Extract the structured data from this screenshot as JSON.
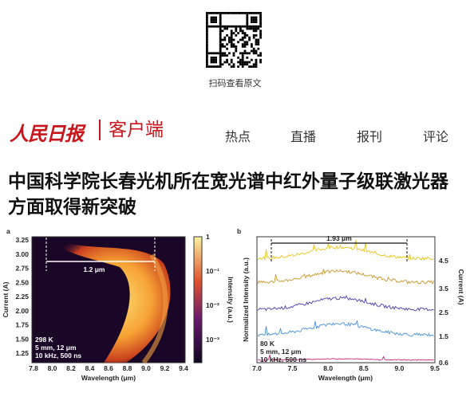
{
  "qr_caption": "扫码查看原文",
  "header": {
    "logo_main": "人民日报",
    "logo_sub": "客户端",
    "nav": [
      "热点",
      "直播",
      "报刊",
      "评论"
    ]
  },
  "article": {
    "title_lines": [
      "中国科学院长春光机所在宽光谱中红外量子级联激光器",
      "方面取得新突破"
    ]
  },
  "figure": {
    "panel_a": {
      "label": "a",
      "y_label": "Current (A)",
      "y_ticks": [
        "3.25",
        "3.00",
        "2.75",
        "2.50",
        "2.25",
        "2.00",
        "1.75",
        "1.50",
        "1.25"
      ],
      "x_ticks": [
        "7.8",
        "8.0",
        "8.2",
        "8.4",
        "8.6",
        "8.8",
        "9.0",
        "9.2",
        "9.4"
      ],
      "x_label": "Wavelength (μm)",
      "span": "1.2 μm",
      "notes": [
        "298 K",
        "5 mm, 12 μm",
        "10 kHz, 500 ns"
      ],
      "colorbar_ticks": [
        "1",
        "10⁻¹",
        "10⁻²",
        "10⁻³"
      ],
      "colorbar_label": "Intensity (a.u.)"
    },
    "panel_b": {
      "label": "b",
      "span": "1.93 μm",
      "y_label": "Normalized Intensity (a.u.)",
      "y2_label": "Current (A)",
      "y2_ticks": [
        "4.5",
        "3.5",
        "2.5",
        "1.5",
        "0.6"
      ],
      "x_ticks": [
        "7.0",
        "7.5",
        "8.0",
        "8.5",
        "9.0",
        "9.5"
      ],
      "x_label": "Wavelength (μm)",
      "notes": [
        "80 K",
        "5 mm, 12 μm",
        "10 kHz, 500 ns"
      ]
    }
  }
}
